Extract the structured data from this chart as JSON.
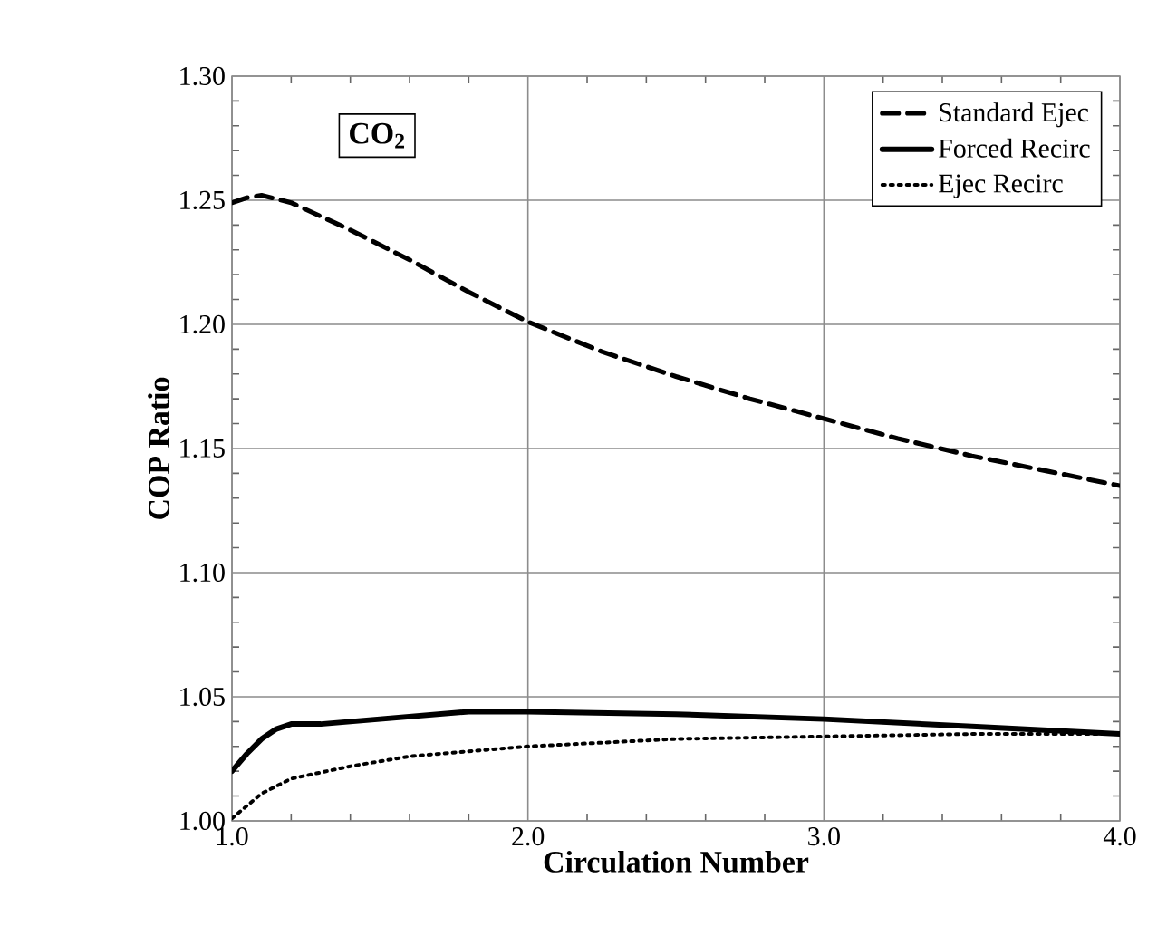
{
  "chart_data": {
    "type": "line",
    "xlabel": "Circulation Number",
    "ylabel": "COP Ratio",
    "annotations": [
      "CO$_{2}$"
    ],
    "xlim": [
      1.0,
      4.0
    ],
    "xticks": [
      {
        "value": 1,
        "label": "1.0"
      },
      {
        "value": 2,
        "label": "2.0"
      },
      {
        "value": 3,
        "label": "3.0"
      },
      {
        "value": 4,
        "label": "4.0"
      }
    ],
    "ylim": [
      1.0,
      1.3
    ],
    "yticks": [
      {
        "value": 1.0,
        "label": "1.00"
      },
      {
        "value": 1.05,
        "label": "1.05"
      },
      {
        "value": 1.1,
        "label": "1.10"
      },
      {
        "value": 1.15,
        "label": "1.15"
      },
      {
        "value": 1.2,
        "label": "1.20"
      },
      {
        "value": 1.25,
        "label": "1.25"
      },
      {
        "value": 1.3,
        "label": "1.30"
      }
    ],
    "grid": true,
    "legend": "top right",
    "marker": "none",
    "series": [
      {
        "name": "Standard Ejec",
        "color": "#000000",
        "line_style": "dashed",
        "x": [
          1.0,
          1.05,
          1.1,
          1.2,
          1.4,
          1.6,
          1.8,
          2.0,
          2.25,
          2.5,
          2.75,
          3.0,
          3.25,
          3.5,
          3.75,
          4.0
        ],
        "values": [
          1.249,
          1.251,
          1.252,
          1.249,
          1.238,
          1.226,
          1.213,
          1.201,
          1.189,
          1.179,
          1.17,
          1.162,
          1.154,
          1.147,
          1.141,
          1.135
        ]
      },
      {
        "name": "Forced Recirc",
        "color": "#000000",
        "line_style": "solid",
        "x": [
          1.0,
          1.05,
          1.1,
          1.15,
          1.2,
          1.3,
          1.5,
          1.8,
          2.0,
          2.5,
          3.0,
          3.5,
          4.0
        ],
        "values": [
          1.02,
          1.027,
          1.033,
          1.037,
          1.039,
          1.039,
          1.041,
          1.044,
          1.044,
          1.043,
          1.041,
          1.038,
          1.035
        ]
      },
      {
        "name": "Ejec Recirc",
        "color": "#000000",
        "line_style": "dotted",
        "x": [
          1.0,
          1.1,
          1.2,
          1.4,
          1.6,
          1.8,
          2.0,
          2.5,
          3.0,
          3.5,
          4.0
        ],
        "values": [
          1.001,
          1.011,
          1.017,
          1.022,
          1.026,
          1.028,
          1.03,
          1.033,
          1.034,
          1.035,
          1.035
        ]
      }
    ]
  }
}
